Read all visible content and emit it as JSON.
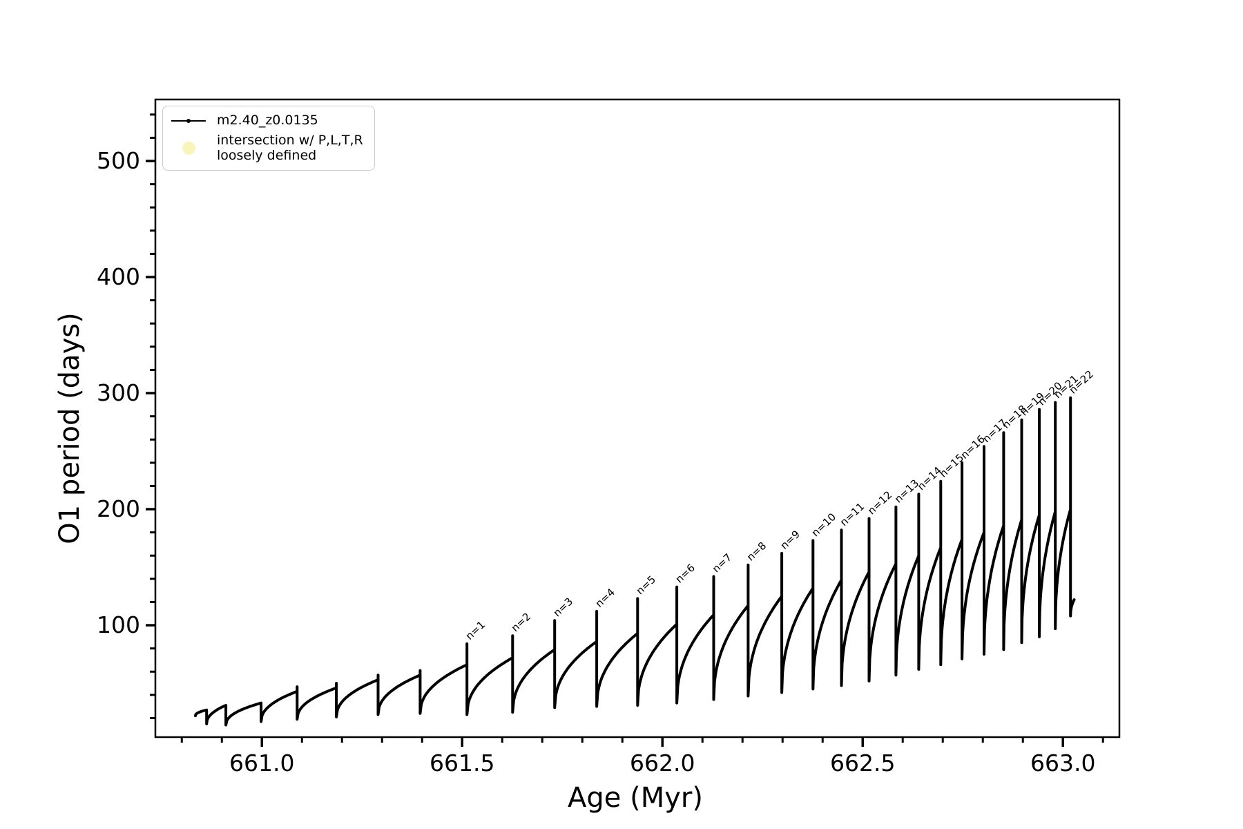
{
  "figure": {
    "background": "#ffffff",
    "series_color": "#000000",
    "intersection_marker_color": "#f9f4bb"
  },
  "chart_data": {
    "type": "line",
    "title": "",
    "xlabel": "Age (Myr)",
    "ylabel": "O1 period (days)",
    "xlim": [
      660.734,
      663.141
    ],
    "ylim": [
      3.6,
      553
    ],
    "grid": false,
    "x_ticks": [
      {
        "v": 661.0,
        "label": "661.0"
      },
      {
        "v": 661.5,
        "label": "661.5"
      },
      {
        "v": 662.0,
        "label": "662.0"
      },
      {
        "v": 662.5,
        "label": "662.5"
      },
      {
        "v": 663.0,
        "label": "663.0"
      }
    ],
    "x_minor_step": 0.1,
    "y_ticks": [
      {
        "v": 100,
        "label": "100"
      },
      {
        "v": 200,
        "label": "200"
      },
      {
        "v": 300,
        "label": "300"
      },
      {
        "v": 400,
        "label": "400"
      },
      {
        "v": 500,
        "label": "500"
      }
    ],
    "y_minor_step": 20,
    "legend": {
      "position": "upper left",
      "entries": [
        {
          "marker": "line-with-dot",
          "color": "#000000",
          "label": "m2.40_z0.0135"
        },
        {
          "marker": "filled-circle",
          "color": "#f9f4bb",
          "label": "intersection w/ P,L,T,R\nloosely defined"
        }
      ]
    },
    "series_name": "m2.40_z0.0135",
    "series_start": {
      "age": 660.834,
      "period": 22
    },
    "pulse_cycles": [
      {
        "end_age": 660.862,
        "start_min": 22,
        "peak": 27,
        "spike": null,
        "label": null
      },
      {
        "end_age": 660.91,
        "start_min": 15,
        "peak": 31,
        "spike": null,
        "label": null
      },
      {
        "end_age": 660.998,
        "start_min": 14,
        "peak": 33,
        "spike": null,
        "label": null
      },
      {
        "end_age": 661.088,
        "start_min": 17,
        "peak": 43,
        "spike": 47,
        "label": null
      },
      {
        "end_age": 661.186,
        "start_min": 19,
        "peak": 46,
        "spike": 50,
        "label": null
      },
      {
        "end_age": 661.29,
        "start_min": 21,
        "peak": 53,
        "spike": 57,
        "label": null
      },
      {
        "end_age": 661.395,
        "start_min": 23,
        "peak": 57,
        "spike": 61,
        "label": null
      },
      {
        "end_age": 661.512,
        "start_min": 24,
        "peak": 66,
        "spike": 84,
        "label": "n=1"
      },
      {
        "end_age": 661.626,
        "start_min": 23,
        "peak": 72,
        "spike": 91,
        "label": "n=2"
      },
      {
        "end_age": 661.731,
        "start_min": 25,
        "peak": 79,
        "spike": 104,
        "label": "n=3"
      },
      {
        "end_age": 661.836,
        "start_min": 29,
        "peak": 86,
        "spike": 112,
        "label": "n=4"
      },
      {
        "end_age": 661.938,
        "start_min": 30,
        "peak": 93,
        "spike": 123,
        "label": "n=5"
      },
      {
        "end_age": 662.036,
        "start_min": 31,
        "peak": 101,
        "spike": 133,
        "label": "n=6"
      },
      {
        "end_age": 662.128,
        "start_min": 33,
        "peak": 109,
        "spike": 142,
        "label": "n=7"
      },
      {
        "end_age": 662.214,
        "start_min": 36,
        "peak": 117,
        "spike": 152,
        "label": "n=8"
      },
      {
        "end_age": 662.298,
        "start_min": 39,
        "peak": 125,
        "spike": 162,
        "label": "n=9"
      },
      {
        "end_age": 662.376,
        "start_min": 42,
        "peak": 132,
        "spike": 173,
        "label": "n=10"
      },
      {
        "end_age": 662.447,
        "start_min": 45,
        "peak": 139,
        "spike": 182,
        "label": "n=11"
      },
      {
        "end_age": 662.516,
        "start_min": 48,
        "peak": 146,
        "spike": 192,
        "label": "n=12"
      },
      {
        "end_age": 662.583,
        "start_min": 52,
        "peak": 153,
        "spike": 202,
        "label": "n=13"
      },
      {
        "end_age": 662.64,
        "start_min": 57,
        "peak": 160,
        "spike": 213,
        "label": "n=14"
      },
      {
        "end_age": 662.695,
        "start_min": 62,
        "peak": 167,
        "spike": 224,
        "label": "n=15"
      },
      {
        "end_age": 662.748,
        "start_min": 66,
        "peak": 174,
        "spike": 240,
        "label": "n=16"
      },
      {
        "end_age": 662.803,
        "start_min": 71,
        "peak": 180,
        "spike": 254,
        "label": "n=17"
      },
      {
        "end_age": 662.852,
        "start_min": 75,
        "peak": 186,
        "spike": 266,
        "label": "n=18"
      },
      {
        "end_age": 662.897,
        "start_min": 79,
        "peak": 191,
        "spike": 277,
        "label": "n=19"
      },
      {
        "end_age": 662.941,
        "start_min": 85,
        "peak": 195,
        "spike": 286,
        "label": "n=20"
      },
      {
        "end_age": 662.981,
        "start_min": 90,
        "peak": 198,
        "spike": 292,
        "label": "n=21"
      },
      {
        "end_age": 663.019,
        "start_min": 97,
        "peak": 200,
        "spike": 296,
        "label": "n=22"
      },
      {
        "end_age": 663.028,
        "start_min": 108,
        "peak": 122,
        "spike": null,
        "label": null
      }
    ]
  }
}
